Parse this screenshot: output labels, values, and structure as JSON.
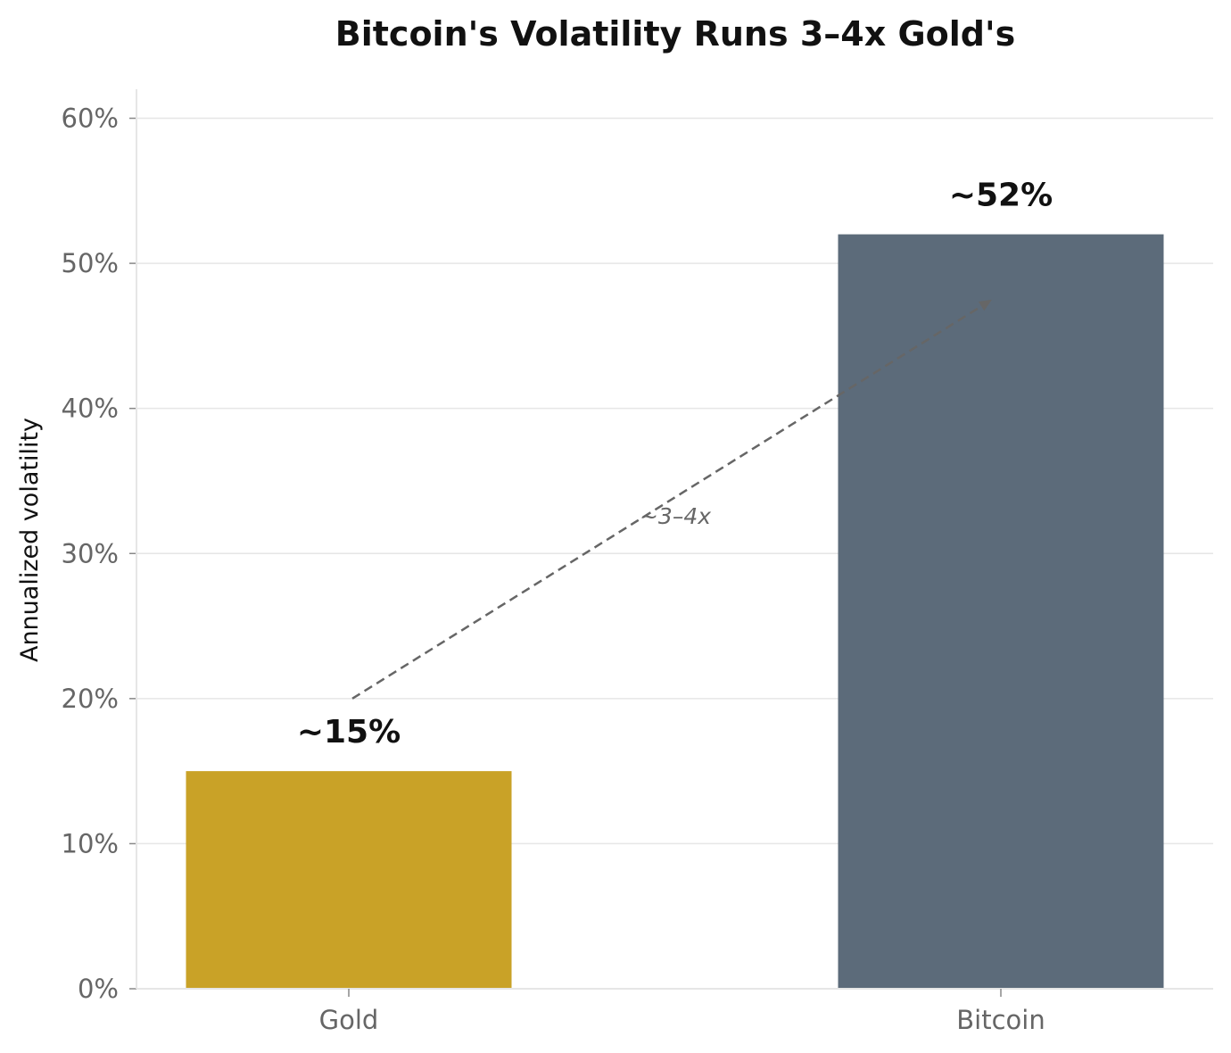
{
  "chart_data": {
    "type": "bar",
    "title": "Bitcoin's Volatility Runs 3–4x Gold's",
    "xlabel": "",
    "ylabel": "Annualized volatility",
    "categories": [
      "Gold",
      "Bitcoin"
    ],
    "values": [
      15,
      52
    ],
    "value_labels": [
      "~15%",
      "~52%"
    ],
    "colors": [
      "#C9A227",
      "#5C6B7A"
    ],
    "ylim": [
      0,
      62
    ],
    "yticks": [
      0,
      10,
      20,
      30,
      40,
      50,
      60
    ],
    "ytick_labels": [
      "0%",
      "10%",
      "20%",
      "30%",
      "40%",
      "50%",
      "60%"
    ],
    "grid": true,
    "annotation": {
      "text": "~3–4x",
      "from": {
        "category": "Gold",
        "value": 20
      },
      "to": {
        "category": "Bitcoin",
        "value": 47.5
      },
      "line_style": "dashed",
      "color": "#666666"
    }
  }
}
